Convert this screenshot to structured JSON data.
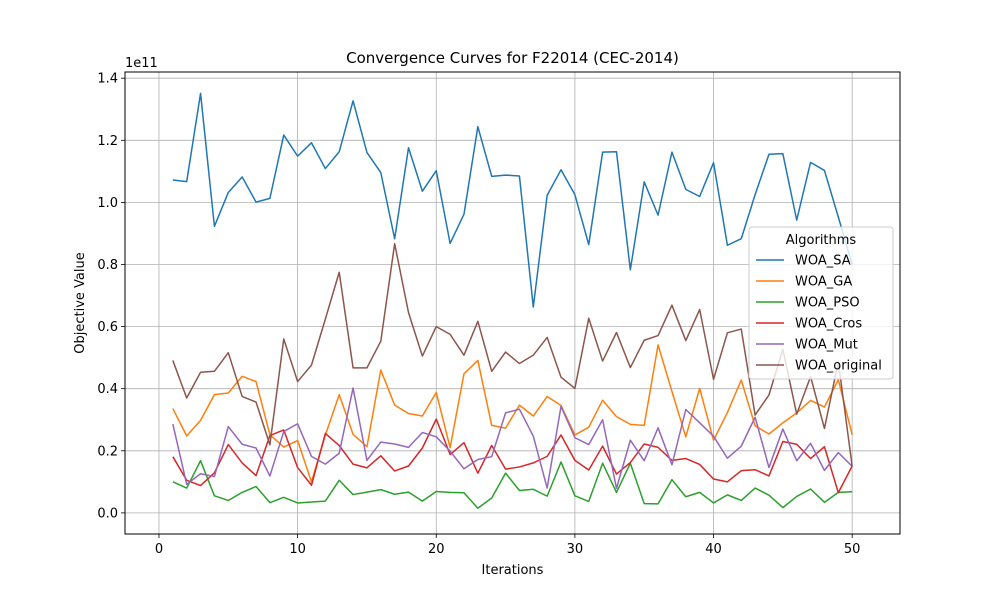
{
  "chart_data": {
    "type": "line",
    "title": "Convergence Curves for F22014 (CEC-2014)",
    "xlabel": "Iterations",
    "ylabel": "Objective Value",
    "y_scale_label": "1e11",
    "y_multiplier": 100000000000,
    "xlim": [
      -2.45,
      53.45
    ],
    "ylim": [
      -0.068,
      1.42
    ],
    "x_ticks": [
      0,
      10,
      20,
      30,
      40,
      50
    ],
    "x_tick_labels": [
      "0",
      "10",
      "20",
      "30",
      "40",
      "50"
    ],
    "y_ticks": [
      0.0,
      0.2,
      0.4,
      0.6,
      0.8,
      1.0,
      1.2,
      1.4
    ],
    "y_tick_labels": [
      "0.0",
      "0.2",
      "0.4",
      "0.6",
      "0.8",
      "1.0",
      "1.2",
      "1.4"
    ],
    "grid": true,
    "legend": {
      "title": "Algorithms",
      "placement": "center-right"
    },
    "x": [
      1,
      2,
      3,
      4,
      5,
      6,
      7,
      8,
      9,
      10,
      11,
      12,
      13,
      14,
      15,
      16,
      17,
      18,
      19,
      20,
      21,
      22,
      23,
      24,
      25,
      26,
      27,
      28,
      29,
      30,
      31,
      32,
      33,
      34,
      35,
      36,
      37,
      38,
      39,
      40,
      41,
      42,
      43,
      44,
      45,
      46,
      47,
      48,
      49,
      50
    ],
    "series": [
      {
        "name": "WOA_SA",
        "color": "#1f77b4",
        "values": [
          1.072,
          1.067,
          1.351,
          0.923,
          1.032,
          1.082,
          1.001,
          1.013,
          1.217,
          1.149,
          1.192,
          1.109,
          1.163,
          1.327,
          1.161,
          1.096,
          0.883,
          1.176,
          1.036,
          1.102,
          0.868,
          0.962,
          1.244,
          1.084,
          1.088,
          1.085,
          0.663,
          1.023,
          1.105,
          1.025,
          0.864,
          1.162,
          1.163,
          0.783,
          1.066,
          0.959,
          1.162,
          1.042,
          1.019,
          1.128,
          0.862,
          0.883,
          1.025,
          1.155,
          1.157,
          0.943,
          1.129,
          1.103,
          0.953,
          0.8
        ]
      },
      {
        "name": "WOA_GA",
        "color": "#ff7f0e",
        "values": [
          0.336,
          0.248,
          0.298,
          0.381,
          0.386,
          0.44,
          0.423,
          0.252,
          0.212,
          0.233,
          0.1,
          0.25,
          0.381,
          0.253,
          0.213,
          0.46,
          0.347,
          0.32,
          0.312,
          0.388,
          0.21,
          0.448,
          0.491,
          0.282,
          0.273,
          0.347,
          0.312,
          0.375,
          0.346,
          0.251,
          0.276,
          0.363,
          0.31,
          0.285,
          0.282,
          0.541,
          0.391,
          0.245,
          0.401,
          0.234,
          0.323,
          0.428,
          0.28,
          0.254,
          0.29,
          0.322,
          0.362,
          0.341,
          0.429,
          0.252
        ]
      },
      {
        "name": "WOA_PSO",
        "color": "#2ca02c",
        "values": [
          0.1,
          0.08,
          0.168,
          0.055,
          0.04,
          0.066,
          0.085,
          0.033,
          0.05,
          0.032,
          0.035,
          0.038,
          0.105,
          0.059,
          0.067,
          0.075,
          0.06,
          0.067,
          0.038,
          0.069,
          0.066,
          0.065,
          0.015,
          0.048,
          0.128,
          0.072,
          0.076,
          0.054,
          0.164,
          0.055,
          0.037,
          0.16,
          0.066,
          0.16,
          0.03,
          0.029,
          0.107,
          0.052,
          0.066,
          0.032,
          0.058,
          0.04,
          0.08,
          0.057,
          0.017,
          0.053,
          0.077,
          0.034,
          0.066,
          0.068
        ]
      },
      {
        "name": "WOA_Cros",
        "color": "#d62728",
        "values": [
          0.181,
          0.105,
          0.088,
          0.129,
          0.22,
          0.161,
          0.12,
          0.249,
          0.267,
          0.146,
          0.089,
          0.256,
          0.217,
          0.157,
          0.145,
          0.184,
          0.135,
          0.151,
          0.209,
          0.302,
          0.188,
          0.226,
          0.128,
          0.217,
          0.141,
          0.148,
          0.161,
          0.182,
          0.251,
          0.169,
          0.138,
          0.215,
          0.125,
          0.162,
          0.222,
          0.211,
          0.169,
          0.175,
          0.156,
          0.109,
          0.1,
          0.136,
          0.139,
          0.119,
          0.23,
          0.221,
          0.175,
          0.213,
          0.065,
          0.151
        ]
      },
      {
        "name": "WOA_Mut",
        "color": "#9467bd",
        "values": [
          0.286,
          0.092,
          0.126,
          0.117,
          0.278,
          0.221,
          0.209,
          0.119,
          0.262,
          0.287,
          0.182,
          0.157,
          0.192,
          0.402,
          0.169,
          0.228,
          0.222,
          0.211,
          0.259,
          0.245,
          0.199,
          0.142,
          0.172,
          0.181,
          0.322,
          0.334,
          0.247,
          0.08,
          0.343,
          0.242,
          0.22,
          0.3,
          0.079,
          0.234,
          0.168,
          0.274,
          0.155,
          0.333,
          0.29,
          0.247,
          0.176,
          0.215,
          0.308,
          0.146,
          0.27,
          0.168,
          0.224,
          0.137,
          0.194,
          0.15
        ]
      },
      {
        "name": "WOA_original",
        "color": "#8c564b",
        "values": [
          0.491,
          0.37,
          0.453,
          0.456,
          0.516,
          0.375,
          0.357,
          0.219,
          0.56,
          0.423,
          0.476,
          0.624,
          0.775,
          0.467,
          0.467,
          0.553,
          0.867,
          0.645,
          0.505,
          0.6,
          0.575,
          0.508,
          0.617,
          0.456,
          0.518,
          0.481,
          0.508,
          0.565,
          0.437,
          0.401,
          0.627,
          0.489,
          0.581,
          0.468,
          0.556,
          0.571,
          0.669,
          0.555,
          0.655,
          0.43,
          0.58,
          0.592,
          0.315,
          0.38,
          0.527,
          0.318,
          0.439,
          0.272,
          0.487,
          0.15
        ]
      }
    ]
  }
}
